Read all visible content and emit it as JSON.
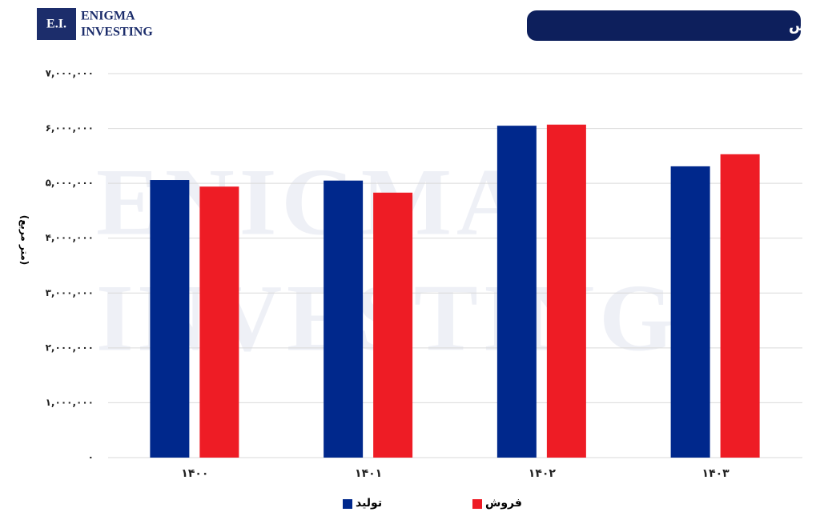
{
  "logo": {
    "mark": "E.I.",
    "line1": "Enigma",
    "line2": "Investing"
  },
  "chart_data": {
    "type": "bar",
    "title": "مقایسه فروش و تولید کپارس",
    "y_label": "(متر مربع)",
    "categories": [
      "۱۴۰۰",
      "۱۴۰۱",
      "۱۴۰۲",
      "۱۴۰۳"
    ],
    "series": [
      {
        "name": "تولید",
        "color": "#00288c",
        "values": [
          5060000,
          5050000,
          6050000,
          5310000
        ]
      },
      {
        "name": "فروش",
        "color": "#ee1c25",
        "values": [
          4940000,
          4830000,
          6070000,
          5530000
        ]
      }
    ],
    "ylim": [
      0,
      7000000
    ],
    "yticks": [
      {
        "value": 0,
        "label": "۰"
      },
      {
        "value": 1000000,
        "label": "۱,۰۰۰,۰۰۰"
      },
      {
        "value": 2000000,
        "label": "۲,۰۰۰,۰۰۰"
      },
      {
        "value": 3000000,
        "label": "۳,۰۰۰,۰۰۰"
      },
      {
        "value": 4000000,
        "label": "۴,۰۰۰,۰۰۰"
      },
      {
        "value": 5000000,
        "label": "۵,۰۰۰,۰۰۰"
      },
      {
        "value": 6000000,
        "label": "۶,۰۰۰,۰۰۰"
      },
      {
        "value": 7000000,
        "label": "۷,۰۰۰,۰۰۰"
      }
    ],
    "grid": true
  }
}
